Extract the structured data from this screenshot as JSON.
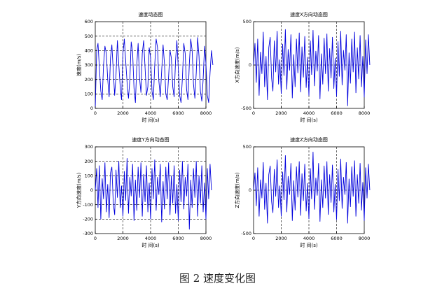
{
  "caption": "图 2  速度变化图",
  "colors": {
    "series": "#0000dd",
    "axis": "#000000",
    "grid": "#000000"
  },
  "chart_data": [
    {
      "type": "line",
      "title": "速度动态图",
      "xlabel": "时 间(s)",
      "ylabel": "速度(m/s)",
      "xlim": [
        0,
        8000
      ],
      "ylim": [
        0,
        600
      ],
      "xticks": [
        "0",
        "2000",
        "4000",
        "6000",
        "8000"
      ],
      "yticks": [
        "0",
        "100",
        "200",
        "300",
        "400",
        "500",
        "600"
      ],
      "grid": true,
      "x_start": 0,
      "x_step": 100,
      "series": [
        {
          "values": [
            0,
            400,
            450,
            280,
            120,
            60,
            300,
            430,
            380,
            200,
            80,
            350,
            440,
            260,
            90,
            230,
            470,
            300,
            150,
            60,
            380,
            480,
            330,
            180,
            70,
            200,
            460,
            390,
            140,
            40,
            300,
            450,
            210,
            110,
            380,
            470,
            280,
            90,
            150,
            420,
            350,
            120,
            60,
            300,
            480,
            420,
            190,
            80,
            260,
            440,
            310,
            100,
            60,
            220,
            400,
            350,
            150,
            80,
            330,
            470,
            280,
            90,
            40,
            210,
            450,
            380,
            130,
            60,
            310,
            480,
            400,
            170,
            70,
            250,
            490,
            360,
            120,
            50,
            200,
            430,
            310,
            90,
            40,
            250,
            400,
            300
          ]
        }
      ]
    },
    {
      "type": "line",
      "title": "速度X方向动态图",
      "xlabel": "时 间(s)",
      "ylabel": "X方向速度(m/s)",
      "xlim": [
        0,
        8000
      ],
      "ylim": [
        -500,
        500
      ],
      "xticks": [
        "0",
        "2000",
        "4000",
        "6000",
        "8000"
      ],
      "yticks": [
        "-500",
        "0",
        "500"
      ],
      "grid": true,
      "x_start": 0,
      "x_step": 100,
      "series": [
        {
          "values": [
            0,
            250,
            -200,
            300,
            -350,
            150,
            -100,
            380,
            -250,
            100,
            -400,
            200,
            320,
            -150,
            -300,
            280,
            -80,
            390,
            -220,
            60,
            -330,
            240,
            -120,
            410,
            -280,
            180,
            -60,
            350,
            -380,
            120,
            -250,
            300,
            -90,
            370,
            -310,
            210,
            -140,
            330,
            -260,
            90,
            -350,
            280,
            -110,
            400,
            -240,
            160,
            -70,
            340,
            -390,
            130,
            -220,
            310,
            -100,
            360,
            -300,
            190,
            -150,
            320,
            -270,
            80,
            -360,
            270,
            -130,
            390,
            -230,
            170,
            -60,
            350,
            -470,
            140,
            -210,
            300,
            -80,
            380,
            -320,
            200,
            -160,
            340,
            -250,
            100,
            -370,
            290,
            -100,
            350,
            0
          ]
        }
      ]
    },
    {
      "type": "line",
      "title": "速度Y方向动态图",
      "xlabel": "时 间(s)",
      "ylabel": "Y方向速度(m/s)",
      "xlim": [
        0,
        8000
      ],
      "ylim": [
        -300,
        300
      ],
      "xticks": [
        "0",
        "2000",
        "4000",
        "6000",
        "8000"
      ],
      "yticks": [
        "-300",
        "-200",
        "-100",
        "0",
        "100",
        "200",
        "300"
      ],
      "grid": true,
      "x_start": 0,
      "x_step": 100,
      "series": [
        {
          "values": [
            0,
            150,
            -120,
            170,
            -200,
            80,
            -60,
            190,
            -150,
            40,
            -190,
            120,
            160,
            -90,
            -170,
            140,
            -50,
            200,
            -120,
            30,
            -180,
            130,
            -70,
            220,
            -160,
            90,
            -40,
            180,
            -210,
            70,
            -140,
            160,
            -50,
            190,
            -180,
            110,
            -80,
            170,
            -150,
            50,
            -200,
            150,
            -60,
            210,
            -140,
            90,
            -30,
            180,
            -220,
            60,
            -130,
            160,
            -60,
            190,
            -170,
            100,
            -90,
            170,
            -160,
            40,
            -210,
            140,
            -80,
            200,
            -130,
            90,
            -40,
            180,
            -270,
            70,
            -120,
            150,
            -50,
            200,
            -180,
            100,
            -90,
            170,
            -150,
            50,
            -200,
            150,
            -60,
            180,
            0
          ]
        }
      ]
    },
    {
      "type": "line",
      "title": "速度Z方向动态图",
      "xlabel": "时 间(s)",
      "ylabel": "Z方向速度(m/s)",
      "xlim": [
        0,
        8000
      ],
      "ylim": [
        -500,
        500
      ],
      "xticks": [
        "0",
        "2000",
        "4000",
        "6000",
        "8000"
      ],
      "yticks": [
        "-500",
        "0",
        "500"
      ],
      "grid": true,
      "x_start": 0,
      "x_step": 100,
      "series": [
        {
          "values": [
            0,
            200,
            -180,
            260,
            -300,
            120,
            -90,
            320,
            -220,
            80,
            -380,
            180,
            280,
            -130,
            -260,
            240,
            -70,
            350,
            -200,
            50,
            -300,
            210,
            -110,
            400,
            -250,
            160,
            -50,
            310,
            -350,
            110,
            -230,
            270,
            -80,
            330,
            -290,
            190,
            -120,
            300,
            -240,
            80,
            -330,
            250,
            -100,
            440,
            -220,
            140,
            -60,
            310,
            -360,
            120,
            -200,
            280,
            -90,
            330,
            -280,
            180,
            -140,
            290,
            -250,
            70,
            -340,
            240,
            -120,
            360,
            -210,
            150,
            -50,
            320,
            -380,
            130,
            -190,
            270,
            -70,
            340,
            -300,
            180,
            -150,
            310,
            -230,
            90,
            -350,
            260,
            -90,
            300,
            0
          ]
        }
      ]
    }
  ]
}
